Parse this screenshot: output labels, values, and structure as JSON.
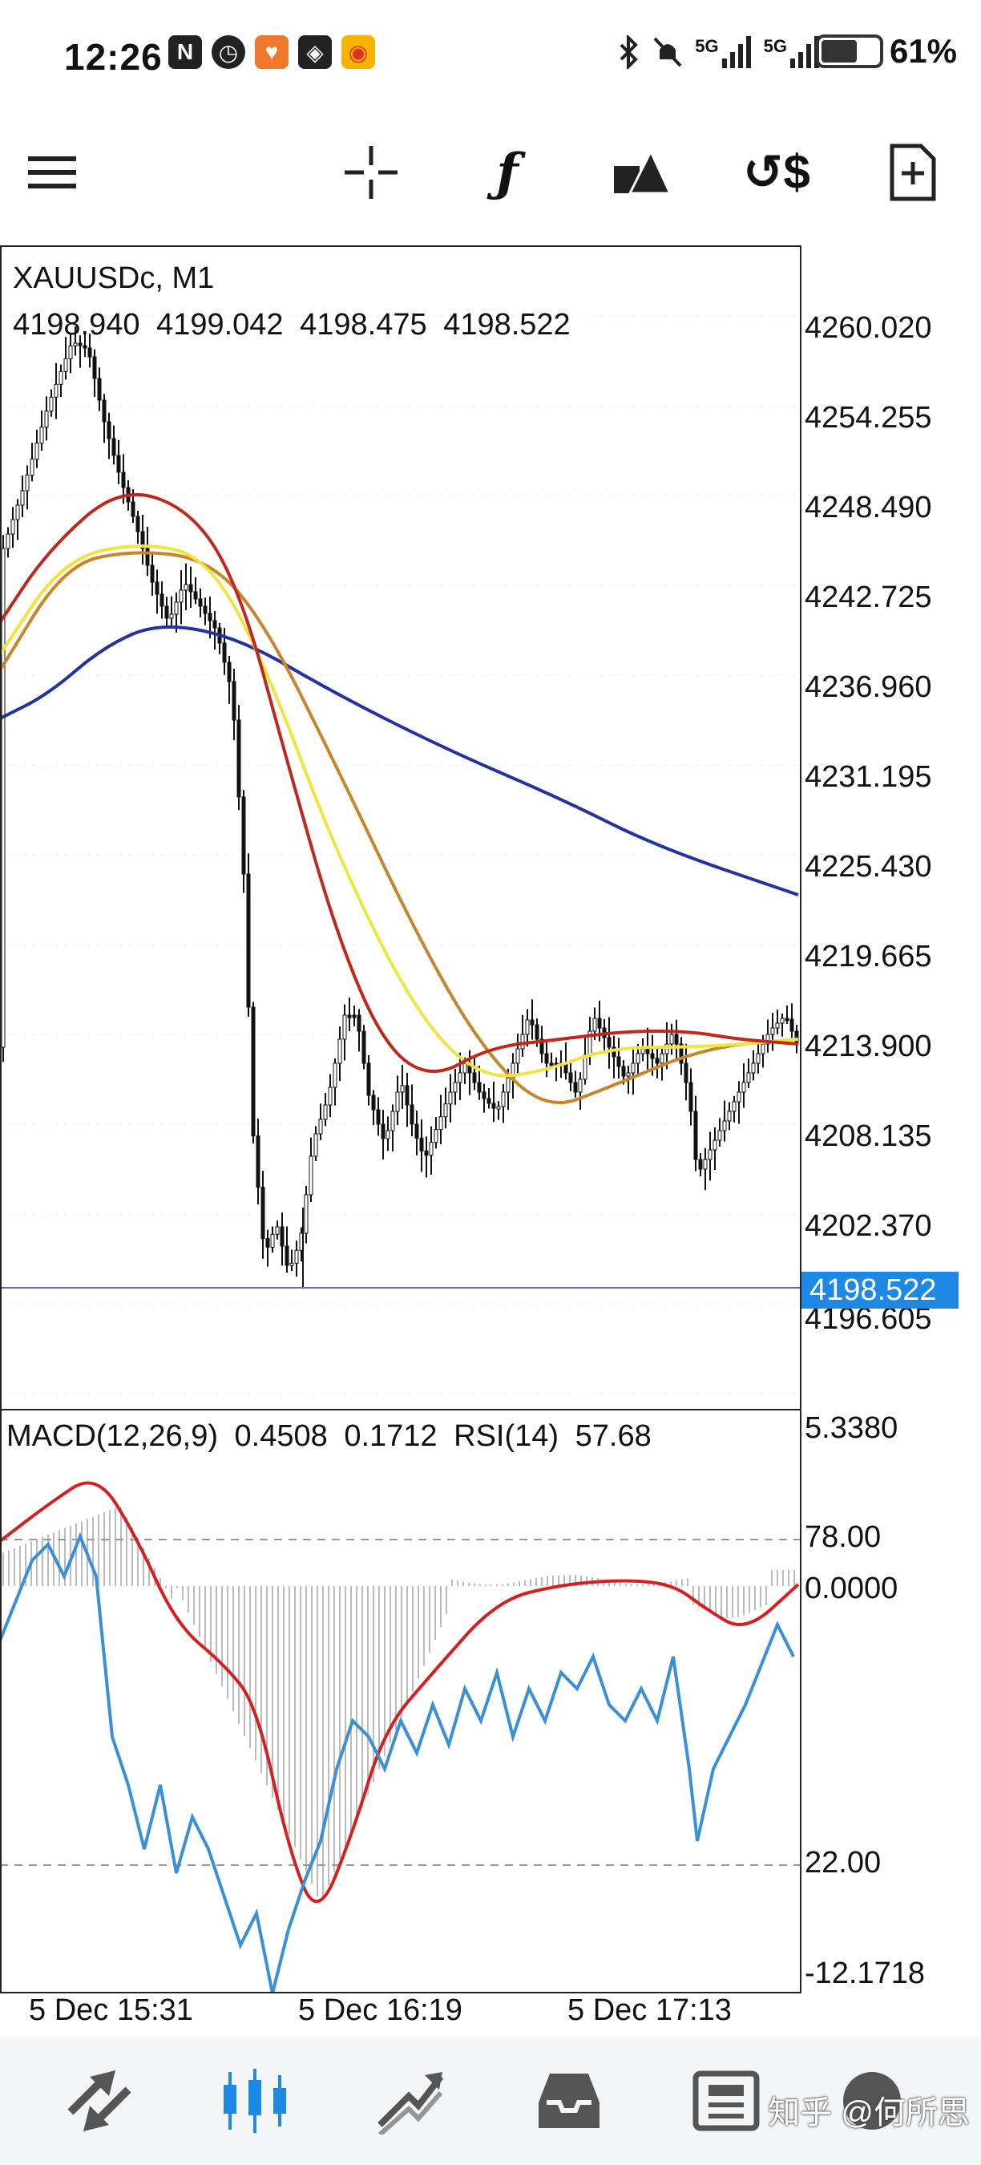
{
  "status_bar": {
    "time": "12:26",
    "battery_percent": "61%",
    "battery_level": 0.61,
    "network_1": "5G",
    "network_2": "5G",
    "icons": [
      "nfc-icon",
      "alarm-icon",
      "heart-app-icon",
      "app-icon",
      "weibo-icon",
      "bluetooth-icon",
      "mute-icon",
      "signal-icon",
      "signal-icon",
      "battery-icon"
    ]
  },
  "toolbar": {
    "items": [
      "menu-icon",
      "crosshair-icon",
      "indicators-icon",
      "objects-icon",
      "trade-icon",
      "new-order-icon"
    ]
  },
  "chart": {
    "symbol": "XAUUSDc, M1",
    "ohlc": [
      "4198.940",
      "4199.042",
      "4198.475",
      "4198.522"
    ],
    "current_price": "4198.522",
    "price_ticks": [
      "4260.020",
      "4254.255",
      "4248.490",
      "4242.725",
      "4236.960",
      "4231.195",
      "4225.430",
      "4219.665",
      "4213.900",
      "4208.135",
      "4202.370",
      "4196.605"
    ],
    "indicator_label_macd": "MACD(12,26,9)",
    "macd_values": [
      "0.4508",
      "0.1712"
    ],
    "indicator_label_rsi": "RSI(14)",
    "rsi_value": "57.68",
    "indicator_ticks": [
      "5.3380",
      "78.00",
      "0.0000",
      "22.00",
      "-12.1718"
    ],
    "time_ticks": [
      "5 Dec 15:31",
      "5 Dec 16:19",
      "5 Dec 17:13"
    ],
    "colors": {
      "ma_red": "#c0281c",
      "ma_yellow": "#f0e442",
      "ma_orange": "#c8862c",
      "ma_blue": "#2233a0",
      "rsi_blue": "#3a8fd9",
      "macd_signal": "#d42020",
      "current_price_bg": "#1e88e5"
    }
  },
  "bottom_nav": {
    "items": [
      "quotes-icon",
      "chart-icon",
      "trade-icon",
      "history-icon",
      "news-icon",
      "settings-icon"
    ],
    "active": "chart-icon",
    "watermark": "知乎 @何所思"
  }
}
